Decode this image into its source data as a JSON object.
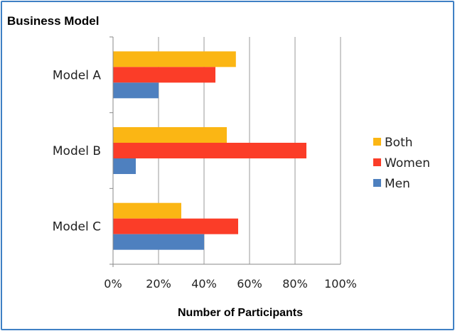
{
  "chart_data": {
    "type": "bar",
    "orientation": "horizontal",
    "title": "Business Model",
    "xlabel": "Number of Participants",
    "ylabel": "",
    "categories": [
      "Model A",
      "Model B",
      "Model C"
    ],
    "series": [
      {
        "name": "Both",
        "color": "#fbb614",
        "values": [
          54,
          50,
          30
        ]
      },
      {
        "name": "Women",
        "color": "#fb3d28",
        "values": [
          45,
          85,
          55
        ]
      },
      {
        "name": "Men",
        "color": "#4e80bf",
        "values": [
          20,
          10,
          40
        ]
      }
    ],
    "xlim": [
      0,
      100
    ],
    "xticks": [
      "0%",
      "20%",
      "40%",
      "60%",
      "80%",
      "100%"
    ],
    "grid": true,
    "legend_position": "right"
  }
}
